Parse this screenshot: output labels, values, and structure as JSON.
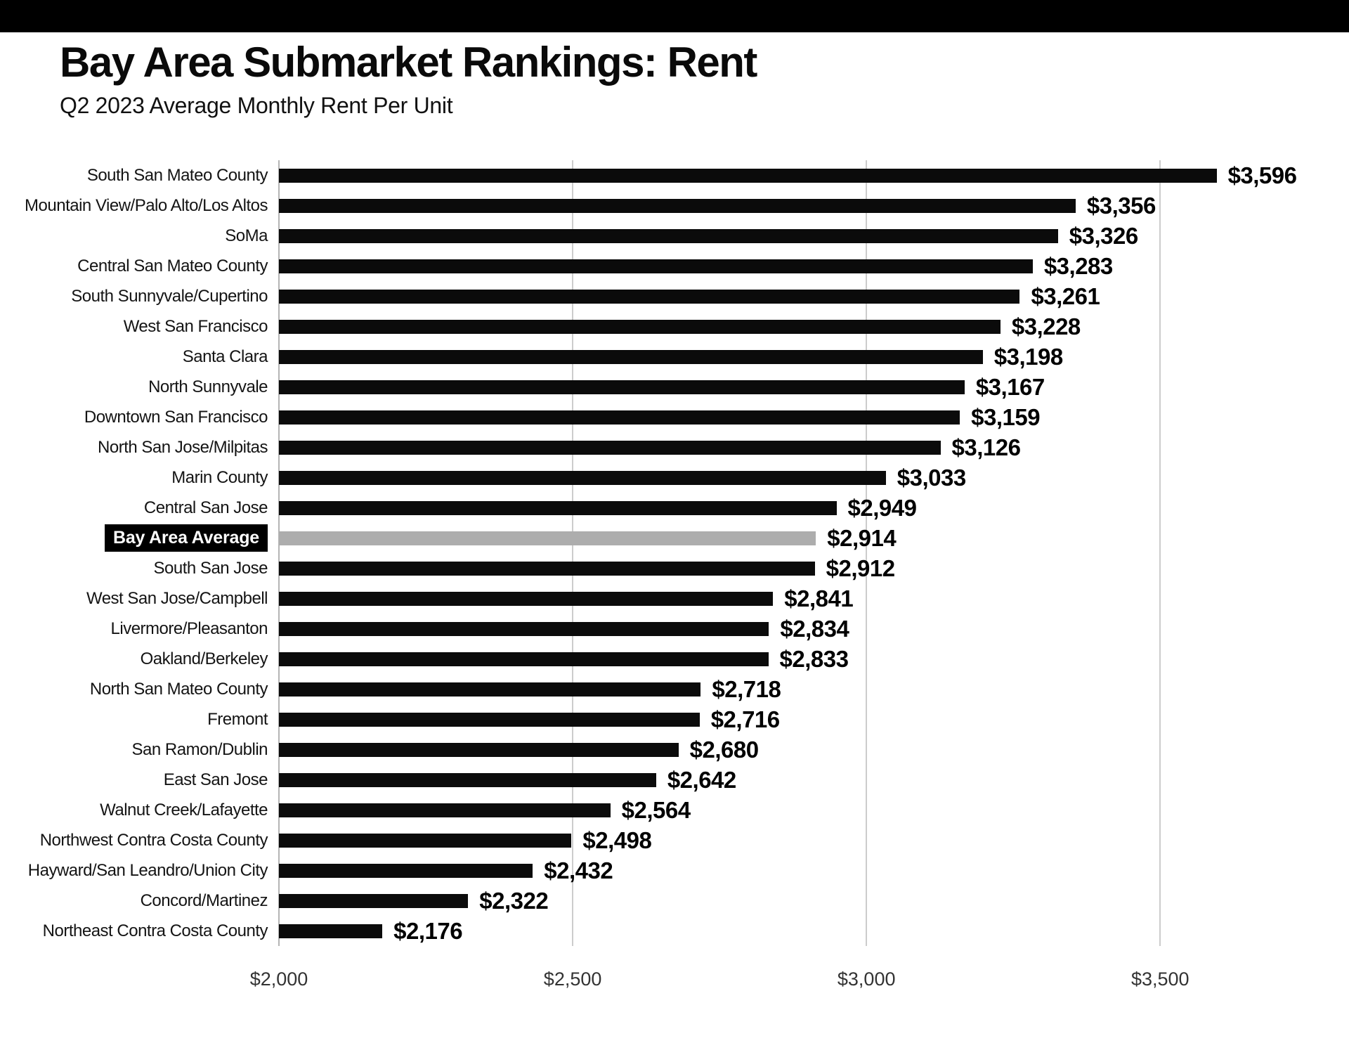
{
  "banner": {
    "color": "#000000"
  },
  "header": {
    "title": "Bay Area Submarket Rankings: Rent",
    "subtitle": "Q2 2023 Average Monthly Rent Per Unit"
  },
  "chart_data": {
    "type": "bar",
    "orientation": "horizontal",
    "title": "Bay Area Submarket Rankings: Rent",
    "subtitle": "Q2 2023 Average Monthly Rent Per Unit",
    "xlabel": "",
    "ylabel": "",
    "categories": [
      "South San Mateo County",
      "Mountain View/Palo Alto/Los Altos",
      "SoMa",
      "Central San Mateo County",
      "South Sunnyvale/Cupertino",
      "West San Francisco",
      "Santa Clara",
      "North Sunnyvale",
      "Downtown San Francisco",
      "North San Jose/Milpitas",
      "Marin County",
      "Central San Jose",
      "Bay Area Average",
      "South San Jose",
      "West San Jose/Campbell",
      "Livermore/Pleasanton",
      "Oakland/Berkeley",
      "North San Mateo County",
      "Fremont",
      "San Ramon/Dublin",
      "East San Jose",
      "Walnut Creek/Lafayette",
      "Northwest Contra Costa County",
      "Hayward/San Leandro/Union City",
      "Concord/Martinez",
      "Northeast Contra Costa County"
    ],
    "values": [
      3596,
      3356,
      3326,
      3283,
      3261,
      3228,
      3198,
      3167,
      3159,
      3126,
      3033,
      2949,
      2914,
      2912,
      2841,
      2834,
      2833,
      2718,
      2716,
      2680,
      2642,
      2564,
      2498,
      2432,
      2322,
      2176
    ],
    "value_labels": [
      "$3,596",
      "$3,356",
      "$3,326",
      "$3,283",
      "$3,261",
      "$3,228",
      "$3,198",
      "$3,167",
      "$3,159",
      "$3,126",
      "$3,033",
      "$2,949",
      "$2,914",
      "$2,912",
      "$2,841",
      "$2,834",
      "$2,833",
      "$2,718",
      "$2,716",
      "$2,680",
      "$2,642",
      "$2,564",
      "$2,498",
      "$2,432",
      "$2,322",
      "$2,176"
    ],
    "highlight_index": 12,
    "highlight_label": "Bay Area Average",
    "xlim": [
      2000,
      3746
    ],
    "ticks": [
      {
        "value": 2000,
        "label": "$2,000"
      },
      {
        "value": 2500,
        "label": "$2,500"
      },
      {
        "value": 3000,
        "label": "$3,000"
      },
      {
        "value": 3500,
        "label": "$3,500"
      }
    ],
    "grid": true,
    "legend": false,
    "colors": {
      "bar": "#0b0b0b",
      "highlight_bar": "#adadad",
      "highlight_label_bg": "#000000",
      "highlight_label_text": "#ffffff",
      "gridline": "#cccccc",
      "axis_line": "#b5b5b5",
      "banner": "#000000"
    }
  }
}
